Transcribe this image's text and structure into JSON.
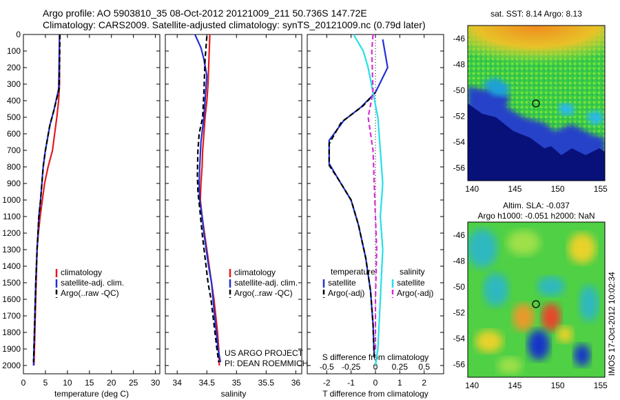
{
  "title_line1": "Argo profile: AO 5903810_35 08-Oct-2012 20121009_211 50.736S 147.72E",
  "title_line2": "Climatology: CARS2009. Satellite-adjusted climatology: synTS_20121009.nc (0.79d later)",
  "credit_line1": "US ARGO PROJECT",
  "credit_line2": "PI: DEAN ROEMMICH",
  "stamp": "IMOS 17-Oct-2012 10:02:34",
  "colors": {
    "red": "#e41a1c",
    "blue": "#1f2fd6",
    "black": "#000000",
    "cyan": "#22e0e8",
    "magenta": "#d62bd6"
  },
  "chart_data": [
    {
      "type": "line",
      "xlabel": "temperature (deg C)",
      "ylabel": "",
      "xlim": [
        0,
        31
      ],
      "ylim": [
        2050,
        0
      ],
      "xticks": [
        0,
        5,
        10,
        15,
        20,
        25,
        30
      ],
      "yticks": [
        0,
        100,
        200,
        300,
        400,
        500,
        600,
        700,
        800,
        900,
        1000,
        1100,
        1200,
        1300,
        1400,
        1500,
        1600,
        1700,
        1800,
        1900,
        2000
      ],
      "legend": [
        "climatology",
        "satellite-adj. clim.",
        "Argo(..raw -QC)"
      ],
      "series": [
        {
          "name": "climatology",
          "color": "#e41a1c",
          "dash": "",
          "points": [
            [
              8.2,
              0
            ],
            [
              8.2,
              300
            ],
            [
              8.0,
              400
            ],
            [
              7.6,
              500
            ],
            [
              7.1,
              600
            ],
            [
              6.6,
              700
            ],
            [
              5.6,
              800
            ],
            [
              4.8,
              900
            ],
            [
              4.3,
              1000
            ],
            [
              3.8,
              1100
            ],
            [
              3.4,
              1200
            ],
            [
              3.1,
              1300
            ],
            [
              2.9,
              1500
            ],
            [
              2.7,
              1700
            ],
            [
              2.5,
              1900
            ],
            [
              2.4,
              2000
            ]
          ]
        },
        {
          "name": "satellite-adj. clim.",
          "color": "#1f2fd6",
          "dash": "",
          "points": [
            [
              8.2,
              0
            ],
            [
              8.1,
              200
            ],
            [
              8.0,
              330
            ],
            [
              7.0,
              450
            ],
            [
              6.0,
              550
            ],
            [
              5.0,
              700
            ],
            [
              4.5,
              800
            ],
            [
              4.2,
              900
            ],
            [
              3.9,
              1000
            ],
            [
              3.5,
              1100
            ],
            [
              3.1,
              1300
            ],
            [
              2.8,
              1500
            ],
            [
              2.6,
              1700
            ],
            [
              2.4,
              1900
            ],
            [
              2.3,
              2000
            ]
          ]
        },
        {
          "name": "Argo(..raw -QC)",
          "color": "#000000",
          "dash": "7,4",
          "points": [
            [
              8.3,
              0
            ],
            [
              8.2,
              200
            ],
            [
              8.1,
              330
            ],
            [
              7.0,
              450
            ],
            [
              6.0,
              550
            ],
            [
              5.0,
              700
            ],
            [
              4.5,
              800
            ],
            [
              4.2,
              900
            ],
            [
              3.9,
              1000
            ],
            [
              3.5,
              1100
            ],
            [
              3.1,
              1300
            ],
            [
              2.8,
              1500
            ],
            [
              2.6,
              1700
            ],
            [
              2.4,
              1900
            ],
            [
              2.3,
              1980
            ]
          ]
        }
      ]
    },
    {
      "type": "line",
      "xlabel": "salinity",
      "ylabel": "",
      "xlim": [
        33.8,
        36.1
      ],
      "ylim": [
        2050,
        0
      ],
      "xticks": [
        34,
        34.5,
        35,
        35.5,
        36
      ],
      "yticks": [
        0,
        100,
        200,
        300,
        400,
        500,
        600,
        700,
        800,
        900,
        1000,
        1100,
        1200,
        1300,
        1400,
        1500,
        1600,
        1700,
        1800,
        1900,
        2000
      ],
      "legend": [
        "climatology",
        "satellite-adj. clim.",
        "Argo(..raw -QC)"
      ],
      "series": [
        {
          "name": "climatology",
          "color": "#e41a1c",
          "dash": "",
          "points": [
            [
              34.55,
              0
            ],
            [
              34.52,
              300
            ],
            [
              34.5,
              400
            ],
            [
              34.47,
              500
            ],
            [
              34.45,
              600
            ],
            [
              34.43,
              700
            ],
            [
              34.42,
              800
            ],
            [
              34.4,
              900
            ],
            [
              34.39,
              1000
            ],
            [
              34.42,
              1100
            ],
            [
              34.46,
              1200
            ],
            [
              34.5,
              1300
            ],
            [
              34.54,
              1400
            ],
            [
              34.58,
              1500
            ],
            [
              34.62,
              1600
            ],
            [
              34.65,
              1700
            ],
            [
              34.68,
              1800
            ],
            [
              34.7,
              1900
            ],
            [
              34.71,
              2000
            ]
          ]
        },
        {
          "name": "satellite-adj. clim.",
          "color": "#1f2fd6",
          "dash": "",
          "points": [
            [
              34.3,
              0
            ],
            [
              34.4,
              80
            ],
            [
              34.45,
              150
            ],
            [
              34.5,
              250
            ],
            [
              34.48,
              350
            ],
            [
              34.45,
              500
            ],
            [
              34.4,
              650
            ],
            [
              34.38,
              800
            ],
            [
              34.37,
              900
            ],
            [
              34.38,
              1000
            ],
            [
              34.42,
              1100
            ],
            [
              34.45,
              1200
            ],
            [
              34.49,
              1300
            ],
            [
              34.53,
              1400
            ],
            [
              34.58,
              1500
            ],
            [
              34.63,
              1700
            ],
            [
              34.69,
              1900
            ],
            [
              34.73,
              1980
            ]
          ]
        },
        {
          "name": "Argo(..raw -QC)",
          "color": "#000000",
          "dash": "7,4",
          "points": [
            [
              34.5,
              10
            ],
            [
              34.47,
              150
            ],
            [
              34.45,
              350
            ],
            [
              34.43,
              500
            ],
            [
              34.37,
              600
            ],
            [
              34.35,
              700
            ],
            [
              34.34,
              850
            ],
            [
              34.35,
              950
            ],
            [
              34.38,
              1050
            ],
            [
              34.42,
              1200
            ],
            [
              34.47,
              1350
            ],
            [
              34.52,
              1500
            ],
            [
              34.57,
              1600
            ],
            [
              34.62,
              1750
            ],
            [
              34.67,
              1900
            ],
            [
              34.7,
              1980
            ]
          ]
        }
      ]
    },
    {
      "type": "line",
      "xlabel": "T difference from climatology",
      "xlabel2": "S difference from climatology",
      "ylabel": "",
      "xlim": [
        -2.8,
        2.8
      ],
      "ylim": [
        2050,
        0
      ],
      "xticks": [
        -2,
        -1,
        0,
        1,
        2
      ],
      "xticks_top": [
        "-0.5",
        "-0.25",
        "0",
        "0.25",
        "0.5"
      ],
      "yticks": [
        0,
        100,
        200,
        300,
        400,
        500,
        600,
        700,
        800,
        900,
        1000,
        1100,
        1200,
        1300,
        1400,
        1500,
        1600,
        1700,
        1800,
        1900,
        2000
      ],
      "legend_title_T": "temperature",
      "legend_title_S": "salinity",
      "legend_T": [
        "satellite",
        "Argo(-adj)"
      ],
      "legend_S": [
        "satellite",
        "Argo(-adj)"
      ],
      "series": [
        {
          "name": "satellite",
          "color": "#1f2fd6",
          "dash": "",
          "points": [
            [
              0.3,
              30
            ],
            [
              0.5,
              200
            ],
            [
              0.0,
              350
            ],
            [
              -0.6,
              440
            ],
            [
              -1.3,
              520
            ],
            [
              -1.9,
              640
            ],
            [
              -1.9,
              780
            ],
            [
              -1.5,
              880
            ],
            [
              -1.0,
              1000
            ],
            [
              -0.7,
              1150
            ],
            [
              -0.4,
              1350
            ],
            [
              -0.2,
              1550
            ],
            [
              -0.1,
              1750
            ],
            [
              -0.05,
              1950
            ]
          ]
        },
        {
          "name": "Argo(-adj)",
          "color": "#000000",
          "dash": "7,4",
          "points": [
            [
              0.0,
              350
            ],
            [
              -0.5,
              430
            ],
            [
              -1.4,
              530
            ],
            [
              -1.9,
              660
            ],
            [
              -1.9,
              790
            ],
            [
              -1.5,
              880
            ],
            [
              -1.0,
              1000
            ],
            [
              -0.7,
              1150
            ],
            [
              -0.4,
              1350
            ],
            [
              -0.2,
              1550
            ],
            [
              -0.1,
              1750
            ],
            [
              -0.05,
              1950
            ]
          ]
        },
        {
          "name": "satellite",
          "color": "#22e0e8",
          "dash": "",
          "points": [
            [
              -0.9,
              0
            ],
            [
              -0.5,
              100
            ],
            [
              -0.3,
              200
            ],
            [
              -0.1,
              350
            ],
            [
              0.1,
              500
            ],
            [
              0.2,
              700
            ],
            [
              0.3,
              900
            ],
            [
              0.2,
              1100
            ],
            [
              0.3,
              1300
            ],
            [
              0.2,
              1600
            ],
            [
              0.1,
              1900
            ],
            [
              0.0,
              2000
            ]
          ]
        },
        {
          "name": "Argo(-adj)",
          "color": "#d62bd6",
          "dash": "7,4",
          "points": [
            [
              -0.1,
              0
            ],
            [
              -0.15,
              100
            ],
            [
              -0.1,
              350
            ],
            [
              -0.3,
              500
            ],
            [
              -0.1,
              700
            ],
            [
              -0.05,
              900
            ],
            [
              0.0,
              1100
            ],
            [
              0.05,
              1300
            ],
            [
              0.0,
              1600
            ],
            [
              0.0,
              1900
            ]
          ]
        }
      ]
    },
    {
      "type": "heatmap",
      "title": "sat. SST: 8.14 Argo: 8.13",
      "xticks": [
        140,
        145,
        150,
        155
      ],
      "yticks": [
        -46,
        -48,
        -50,
        -52,
        -54,
        -56
      ],
      "xlim": [
        139.5,
        155.5
      ],
      "ylim": [
        -57,
        -45
      ],
      "marker": [
        147.72,
        -50.736
      ]
    },
    {
      "type": "heatmap",
      "title": "Altim. SLA: -0.037",
      "subtitle": "Argo h1000: -0.051 h2000: NaN",
      "xticks": [
        140,
        145,
        150,
        155
      ],
      "yticks": [
        -46,
        -48,
        -50,
        -52,
        -54,
        -56
      ],
      "xlim": [
        139.5,
        155.5
      ],
      "ylim": [
        -57,
        -45
      ],
      "marker": [
        147.72,
        -50.736
      ]
    }
  ]
}
